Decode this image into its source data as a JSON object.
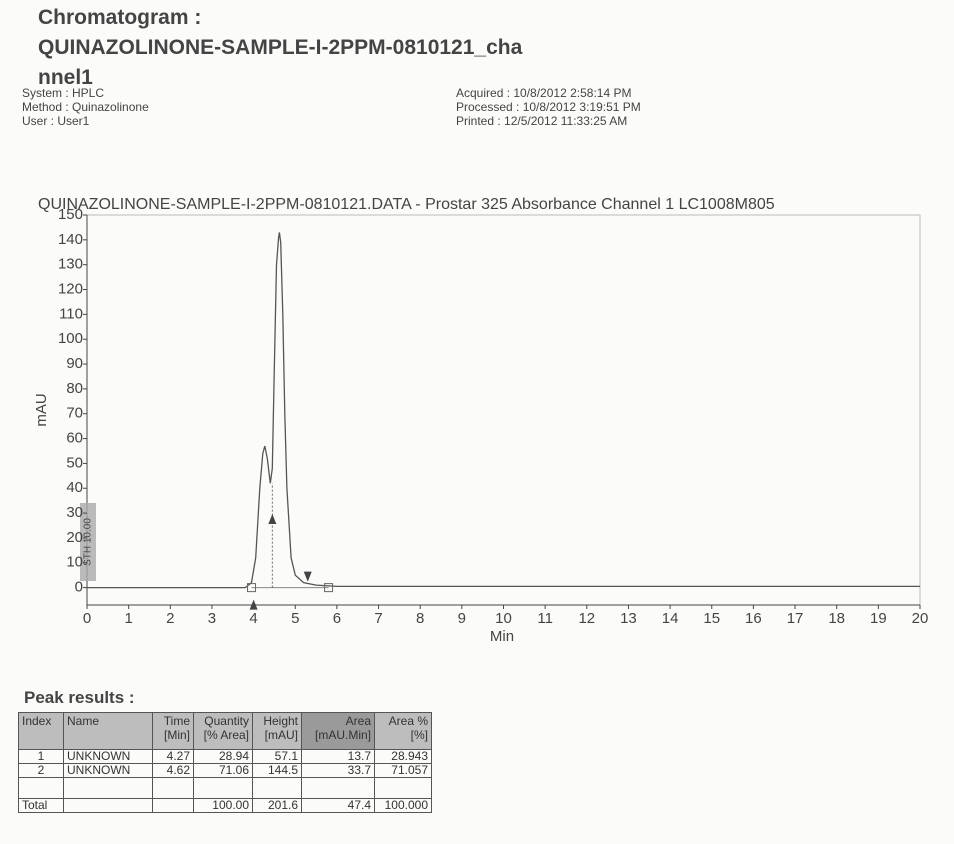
{
  "header": {
    "title_line1": "Chromatogram :",
    "title_line2": "QUINAZOLINONE-SAMPLE-I-2PPM-0810121_cha",
    "title_line3": "nnel1",
    "system": "System : HPLC",
    "method": "Method : Quinazolinone",
    "user": "User : User1",
    "acquired": "Acquired : 10/8/2012 2:58:14 PM",
    "processed": "Processed  : 10/8/2012 3:19:51 PM",
    "printed": "Printed : 12/5/2012 11:33:25 AM"
  },
  "chart_data": {
    "type": "line",
    "title": "QUINAZOLINONE-SAMPLE-I-2PPM-0810121.DATA - Prostar 325 Absorbance Channel 1 LC1008M805",
    "x_label": "Min",
    "y_label": "mAU",
    "annotation": "STH 10.00",
    "x": [
      0,
      3.8,
      3.95,
      4.05,
      4.15,
      4.22,
      4.27,
      4.33,
      4.4,
      4.45,
      4.5,
      4.55,
      4.6,
      4.62,
      4.65,
      4.7,
      4.75,
      4.8,
      4.9,
      5.0,
      5.2,
      5.5,
      6,
      8,
      20
    ],
    "series": [
      {
        "color": "#555555",
        "values": [
          0,
          0,
          2,
          12,
          40,
          54,
          57,
          52,
          42,
          48,
          90,
          130,
          141,
          143,
          139,
          110,
          70,
          40,
          12,
          5,
          2,
          1,
          0.5,
          0.5,
          0.5
        ]
      }
    ],
    "baseline_points": [
      3.95,
      5.8
    ],
    "peak_arrows": [
      4.0,
      4.45,
      5.3
    ],
    "xlim": [
      0,
      20
    ],
    "ylim": [
      -7,
      150
    ],
    "xticks": [
      0,
      1,
      2,
      3,
      4,
      5,
      6,
      7,
      8,
      9,
      10,
      11,
      12,
      13,
      14,
      15,
      16,
      17,
      18,
      19,
      20
    ],
    "yticks": [
      0,
      10,
      20,
      30,
      40,
      50,
      60,
      70,
      80,
      90,
      100,
      110,
      120,
      130,
      140,
      150
    ]
  },
  "peak_results": {
    "title": "Peak results :",
    "columns": [
      {
        "name": "Index",
        "unit": ""
      },
      {
        "name": "Name",
        "unit": ""
      },
      {
        "name": "Time",
        "unit": "[Min]"
      },
      {
        "name": "Quantity",
        "unit": "[% Area]"
      },
      {
        "name": "Height",
        "unit": "[mAU]"
      },
      {
        "name": "Area",
        "unit": "[mAU.Min]"
      },
      {
        "name": "Area %",
        "unit": "[%]"
      }
    ],
    "rows": [
      [
        "1",
        "UNKNOWN",
        "4.27",
        "28.94",
        "57.1",
        "13.7",
        "28.943"
      ],
      [
        "2",
        "UNKNOWN",
        "4.62",
        "71.06",
        "144.5",
        "33.7",
        "71.057"
      ]
    ],
    "total": [
      "Total",
      "",
      "",
      "100.00",
      "201.6",
      "47.4",
      "100.000"
    ]
  }
}
